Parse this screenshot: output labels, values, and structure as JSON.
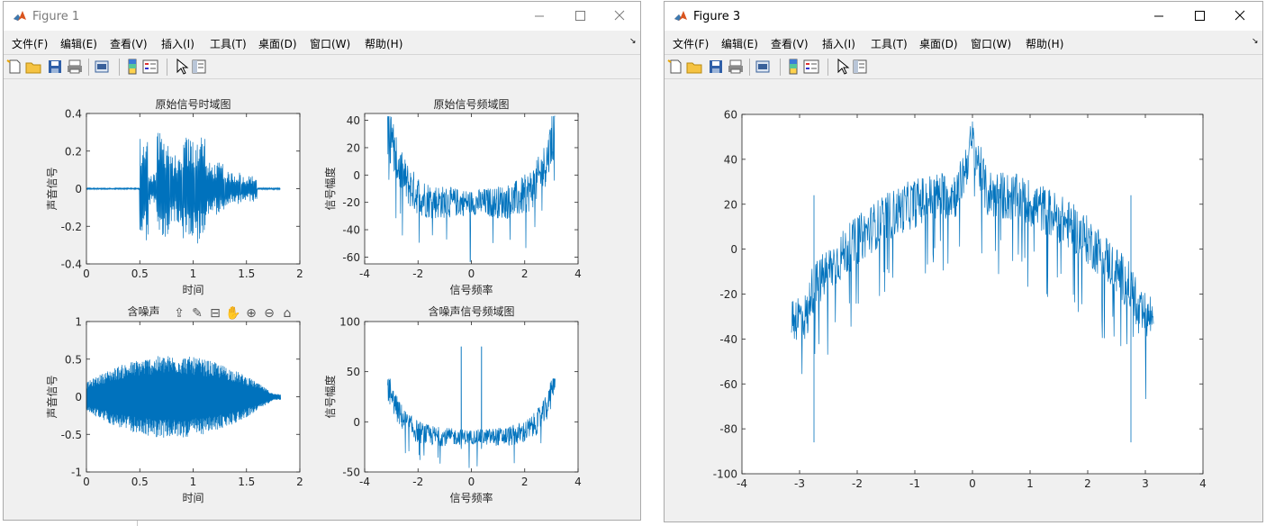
{
  "colors": {
    "plot_line": "#0072bd",
    "axes": "#262626",
    "figure_bg": "#f0f0f0",
    "axes_bg": "#ffffff"
  },
  "figure1": {
    "title": "Figure 1",
    "menu": [
      "文件(F)",
      "编辑(E)",
      "查看(V)",
      "插入(I)",
      "工具(T)",
      "桌面(D)",
      "窗口(W)",
      "帮助(H)"
    ],
    "menu_overflow_icon": "chevron-down-icon",
    "toolbar_icons": [
      "new-figure-icon",
      "open-file-icon",
      "save-icon",
      "print-icon",
      "print-preview-icon",
      "colorbar-icon",
      "legend-icon",
      "edit-plot-icon",
      "property-inspector-icon"
    ],
    "axes_toolbar_icons": [
      "export-icon",
      "brush-icon",
      "data-tip-icon",
      "pan-icon",
      "zoom-in-icon",
      "zoom-out-icon",
      "home-icon"
    ],
    "charts": [
      {
        "type": "line",
        "title": "原始信号时域图",
        "xlabel": "时间",
        "ylabel": "声音信号",
        "xlim": [
          0,
          2
        ],
        "ylim": [
          -0.4,
          0.4
        ],
        "xticks": [
          "0",
          "0.5",
          "1",
          "1.5",
          "2"
        ],
        "yticks": [
          "-0.4",
          "-0.2",
          "0",
          "0.2",
          "0.4"
        ],
        "series": [
          {
            "segments": [
              {
                "x0": 0,
                "x1": 0.5,
                "amp": 0.004
              },
              {
                "x0": 0.5,
                "x1": 0.58,
                "amp": 0.28
              },
              {
                "x0": 0.58,
                "x1": 0.66,
                "amp": 0.09
              },
              {
                "x0": 0.66,
                "x1": 0.78,
                "amp": 0.3
              },
              {
                "x0": 0.78,
                "x1": 0.9,
                "amp": 0.18
              },
              {
                "x0": 0.9,
                "x1": 1.02,
                "amp": 0.28
              },
              {
                "x0": 1.02,
                "x1": 1.12,
                "amp": 0.31
              },
              {
                "x0": 1.12,
                "x1": 1.3,
                "amp": 0.14
              },
              {
                "x0": 1.3,
                "x1": 1.45,
                "amp": 0.09
              },
              {
                "x0": 1.45,
                "x1": 1.6,
                "amp": 0.07
              },
              {
                "x0": 1.6,
                "x1": 1.82,
                "amp": 0.005
              }
            ]
          }
        ],
        "title_text_visible": true
      },
      {
        "type": "line",
        "title": "原始信号频域图",
        "xlabel": "信号频率",
        "ylabel": "信号幅度",
        "xlim": [
          -4,
          4
        ],
        "ylim": [
          -65,
          45
        ],
        "xticks": [
          "-4",
          "-2",
          "0",
          "2",
          "4"
        ],
        "yticks": [
          "-60",
          "-40",
          "-20",
          "0",
          "20",
          "40"
        ],
        "series": [
          {
            "x_range": [
              -3.14,
              3.14
            ],
            "min": -66,
            "edge_max": 43,
            "center_level": -20,
            "spread": 9
          }
        ]
      },
      {
        "type": "line",
        "title": "含噪声信号时域图",
        "title_visible_text": "含噪声",
        "xlabel": "时间",
        "ylabel": "声音信号",
        "xlim": [
          0,
          2
        ],
        "ylim": [
          -1,
          1
        ],
        "xticks": [
          "0",
          "0.5",
          "1",
          "1.5",
          "2"
        ],
        "yticks": [
          "-1",
          "-0.5",
          "0",
          "0.5",
          "1"
        ],
        "series": [
          {
            "x_range": [
              0,
              1.82
            ],
            "peak_x": 0.8,
            "peak_amp": 0.55,
            "edge_amp": 0.04
          }
        ]
      },
      {
        "type": "line",
        "title": "含噪声信号频域图",
        "xlabel": "信号频率",
        "ylabel": "信号幅度",
        "xlim": [
          -4,
          4
        ],
        "ylim": [
          -50,
          100
        ],
        "xticks": [
          "-4",
          "-2",
          "0",
          "2",
          "4"
        ],
        "yticks": [
          "-50",
          "0",
          "50",
          "100"
        ],
        "series": [
          {
            "x_range": [
              -3.14,
              3.14
            ],
            "spikes": [
              {
                "x": -0.38,
                "y": 75
              },
              {
                "x": 0.38,
                "y": 75
              }
            ],
            "center_level": -15,
            "edge_max": 43,
            "min": -48
          }
        ]
      }
    ]
  },
  "figure3": {
    "title": "Figure 3",
    "menu": [
      "文件(F)",
      "编辑(E)",
      "查看(V)",
      "插入(I)",
      "工具(T)",
      "桌面(D)",
      "窗口(W)",
      "帮助(H)"
    ],
    "menu_overflow_icon": "chevron-down-icon",
    "toolbar_icons": [
      "new-figure-icon",
      "open-file-icon",
      "save-icon",
      "print-icon",
      "print-preview-icon",
      "colorbar-icon",
      "legend-icon",
      "edit-plot-icon",
      "property-inspector-icon"
    ],
    "chart": {
      "type": "line",
      "xlim": [
        -4,
        4
      ],
      "ylim": [
        -100,
        60
      ],
      "xticks": [
        "-4",
        "-3",
        "-2",
        "-1",
        "0",
        "1",
        "2",
        "3",
        "4"
      ],
      "yticks": [
        "-100",
        "-80",
        "-60",
        "-40",
        "-20",
        "0",
        "20",
        "40",
        "60"
      ],
      "series": [
        {
          "x_range": [
            -3.14,
            3.14
          ],
          "center_level": 25,
          "center_peak": 56,
          "edge_level": -32,
          "min_spike": -86,
          "spikes": [
            {
              "x": -2.75,
              "y": 24,
              "low": -86
            },
            {
              "x": 2.75,
              "y": 24,
              "low": -86
            }
          ]
        }
      ]
    }
  }
}
